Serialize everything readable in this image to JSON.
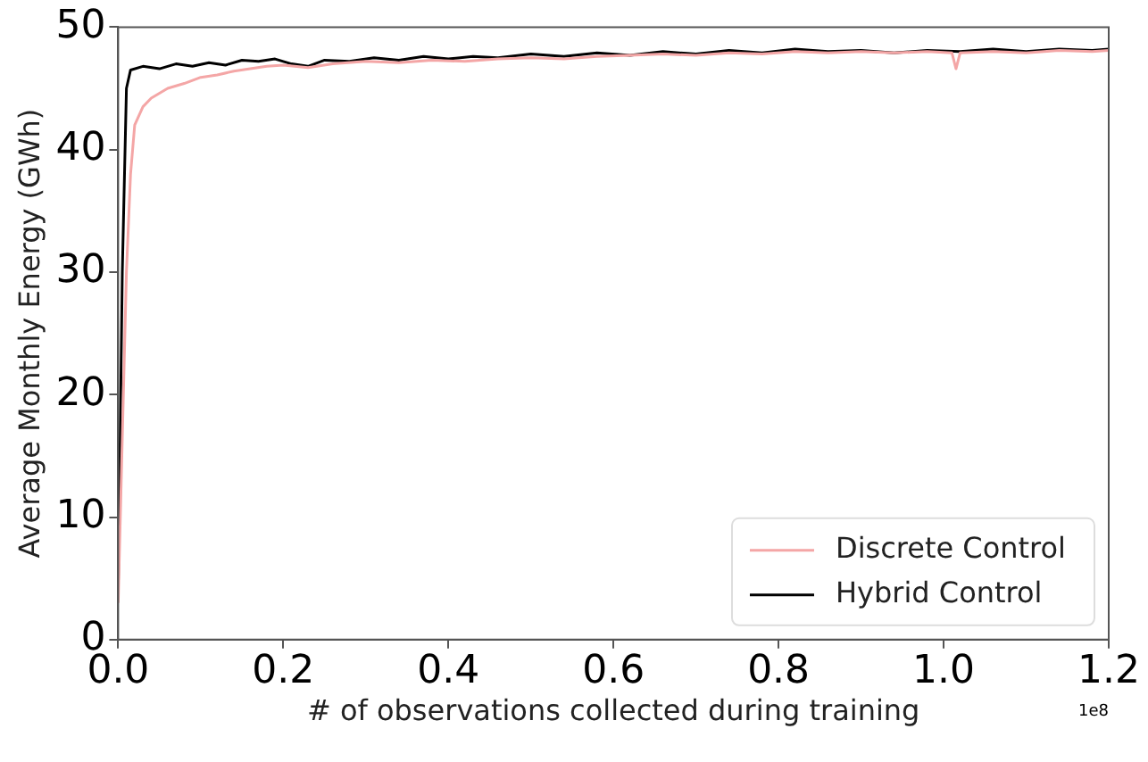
{
  "chart_data": {
    "type": "line",
    "xlabel": "# of observations collected during training",
    "ylabel": "Average Monthly Energy (GWh)",
    "xlim": [
      0,
      1.2
    ],
    "xticks": [
      {
        "value": 0,
        "label": "0.0"
      },
      0.2,
      0.4,
      0.6,
      0.8,
      {
        "value": 1,
        "label": "1.0"
      },
      1.2
    ],
    "ylim": [
      0,
      50
    ],
    "yticks": [
      0,
      10,
      20,
      30,
      40,
      50
    ],
    "grid": false,
    "legend": "bottom right",
    "marker": "none",
    "line_style": "solid",
    "annotations": [
      "1e8"
    ],
    "series": [
      {
        "name": "Discrete Control",
        "color": "#f4a6a6",
        "x": [
          0,
          0.01,
          0.015,
          0.02,
          0.03,
          0.04,
          0.06,
          0.08,
          0.1,
          0.12,
          0.14,
          0.16,
          0.18,
          0.2,
          0.23,
          0.26,
          0.3,
          0.34,
          0.38,
          0.42,
          0.46,
          0.5,
          0.54,
          0.58,
          0.62,
          0.66,
          0.7,
          0.74,
          0.78,
          0.82,
          0.86,
          0.9,
          0.94,
          0.98,
          1.01,
          1.015,
          1.02,
          1.06,
          1.1,
          1.14,
          1.18,
          1.2
        ],
        "values": [
          3,
          30,
          38,
          42,
          43.5,
          44.2,
          45,
          45.4,
          45.9,
          46.1,
          46.4,
          46.6,
          46.8,
          46.9,
          46.7,
          47,
          47.2,
          47.1,
          47.3,
          47.2,
          47.4,
          47.5,
          47.4,
          47.6,
          47.7,
          47.8,
          47.7,
          47.9,
          47.8,
          48,
          47.9,
          48,
          47.9,
          48,
          47.9,
          46.6,
          47.9,
          48,
          47.9,
          48.1,
          48,
          48.1
        ]
      },
      {
        "name": "Hybrid Control",
        "color": "#000000",
        "x": [
          0,
          0.005,
          0.01,
          0.015,
          0.03,
          0.05,
          0.07,
          0.09,
          0.11,
          0.13,
          0.15,
          0.17,
          0.19,
          0.21,
          0.23,
          0.25,
          0.28,
          0.31,
          0.34,
          0.37,
          0.4,
          0.43,
          0.46,
          0.5,
          0.54,
          0.58,
          0.62,
          0.66,
          0.7,
          0.74,
          0.78,
          0.82,
          0.86,
          0.9,
          0.94,
          0.98,
          1.02,
          1.06,
          1.1,
          1.14,
          1.18,
          1.2
        ],
        "values": [
          4,
          30,
          45,
          46.5,
          46.8,
          46.6,
          47,
          46.8,
          47.1,
          46.9,
          47.3,
          47.2,
          47.4,
          47,
          46.8,
          47.3,
          47.2,
          47.5,
          47.3,
          47.6,
          47.4,
          47.6,
          47.5,
          47.8,
          47.6,
          47.9,
          47.7,
          48,
          47.8,
          48.1,
          47.9,
          48.2,
          48,
          48.1,
          47.9,
          48.1,
          48,
          48.2,
          48,
          48.2,
          48.1,
          48.2
        ]
      }
    ]
  }
}
